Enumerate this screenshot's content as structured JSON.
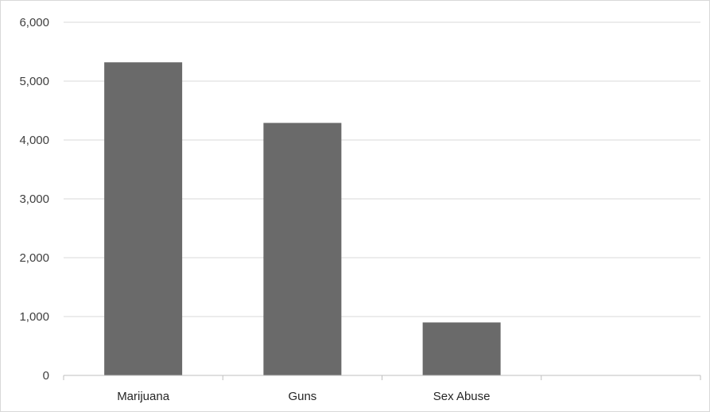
{
  "chart_data": {
    "type": "bar",
    "categories": [
      "Marijuana",
      "Guns",
      "Sex Abuse",
      ""
    ],
    "values": [
      5320,
      4290,
      900,
      null
    ],
    "ylim": [
      0,
      6000
    ],
    "yticks": [
      0,
      1000,
      2000,
      3000,
      4000,
      5000,
      6000
    ],
    "ytick_labels": [
      "0",
      "1,000",
      "2,000",
      "3,000",
      "4,000",
      "5,000",
      "6,000"
    ],
    "grid": true,
    "legend": "none",
    "colors": {
      "bar": "#6a6a6a",
      "grid": "#d9d9d9",
      "axis": "#bfbfbf"
    }
  }
}
